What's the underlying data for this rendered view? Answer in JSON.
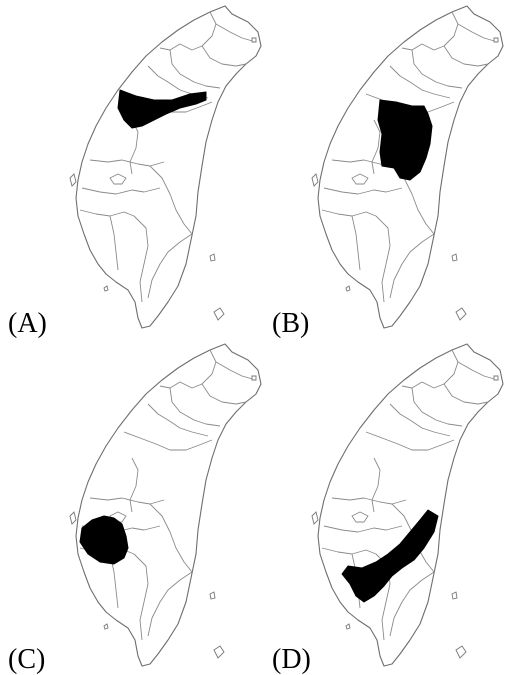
{
  "maps": [
    {
      "label": "(A)",
      "highlight": "A"
    },
    {
      "label": "(B)",
      "highlight": "B"
    },
    {
      "label": "(C)",
      "highlight": "C"
    },
    {
      "label": "(D)",
      "highlight": "D"
    }
  ],
  "colors": {
    "highlight": "#000000",
    "border": "#8a8a8a",
    "background": "#ffffff"
  }
}
